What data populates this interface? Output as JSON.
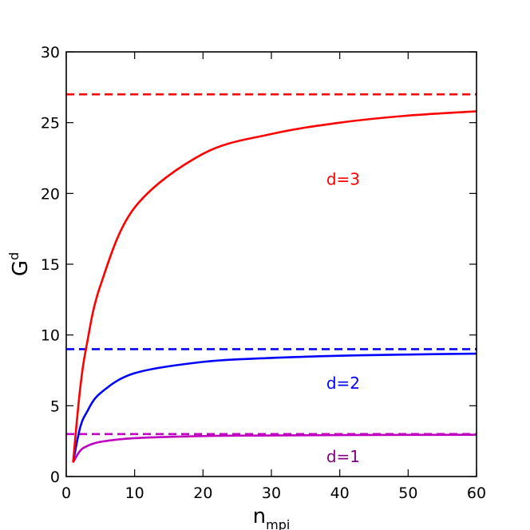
{
  "chart_data": {
    "type": "line",
    "xlabel": {
      "base": "n",
      "sub": "mpi"
    },
    "ylabel": {
      "base": "G",
      "sup": "d"
    },
    "xlim": [
      0,
      60
    ],
    "ylim": [
      0,
      30
    ],
    "xticks": [
      0,
      10,
      20,
      30,
      40,
      50,
      60
    ],
    "yticks": [
      0,
      5,
      10,
      15,
      20,
      25,
      30
    ],
    "grid": false,
    "series": [
      {
        "label": "d=1",
        "d": 1,
        "color": "#bf00bf",
        "label_color": "#800080",
        "style": "solid",
        "x": [
          1,
          2,
          3,
          5,
          10,
          20,
          30,
          40,
          50,
          60
        ],
        "y": [
          1.0,
          1.8,
          2.14,
          2.45,
          2.71,
          2.86,
          2.9,
          2.93,
          2.94,
          2.95
        ]
      },
      {
        "label": "d=2",
        "d": 2,
        "color": "#0000ff",
        "label_color": "#0000ff",
        "style": "solid",
        "x": [
          1,
          2,
          3,
          5,
          10,
          20,
          30,
          40,
          50,
          60
        ],
        "y": [
          1.0,
          3.4,
          4.54,
          5.89,
          7.3,
          8.1,
          8.38,
          8.53,
          8.62,
          8.68
        ]
      },
      {
        "label": "d=3",
        "d": 3,
        "color": "#ff0000",
        "label_color": "#ff0000",
        "style": "solid",
        "x": [
          1,
          2,
          3,
          5,
          10,
          20,
          30,
          40,
          50,
          60
        ],
        "y": [
          1.0,
          6.07,
          9.32,
          13.5,
          19.0,
          22.8,
          24.2,
          25.0,
          25.5,
          25.8
        ]
      },
      {
        "d": 1,
        "color": "#bf00bf",
        "style": "dashed",
        "x": [
          0,
          60
        ],
        "y": [
          3,
          3
        ]
      },
      {
        "d": 2,
        "color": "#0000ff",
        "style": "dashed",
        "x": [
          0,
          60
        ],
        "y": [
          9,
          9
        ]
      },
      {
        "d": 3,
        "color": "#ff0000",
        "style": "dashed",
        "x": [
          0,
          60
        ],
        "y": [
          27,
          27
        ]
      }
    ],
    "annotations": [
      {
        "text": "d=3",
        "x": 40.5,
        "y": 21,
        "color": "#ff0000"
      },
      {
        "text": "d=2",
        "x": 40.5,
        "y": 6.6,
        "color": "#0000ff"
      },
      {
        "text": "d=1",
        "x": 40.5,
        "y": 1.4,
        "color": "#800080"
      }
    ]
  }
}
